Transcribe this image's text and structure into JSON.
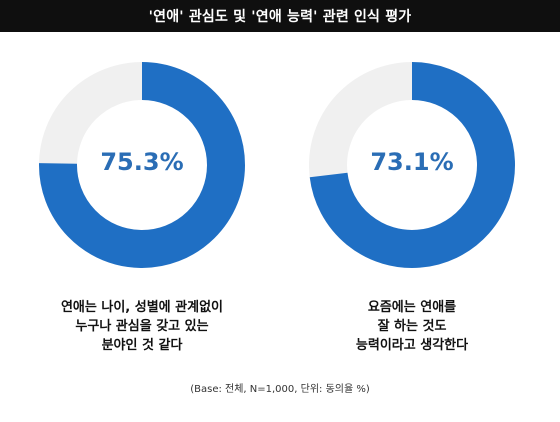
{
  "title": "'연애' 관심도 및 '연애 능력' 관련 인식 평가",
  "footnote": "(Base: 전체, N=1,000, 단위: 동의율 %)",
  "colors": {
    "accent": "#1f6fc4",
    "track": "#f0f0f0",
    "title_bg": "#0f0f0f",
    "value_text": "#2a6db5"
  },
  "chart_data": [
    {
      "type": "pie",
      "value": 75.3,
      "value_label": "75.3%",
      "caption_lines": [
        "연애는 나이, 성별에 관계없이",
        "누구나 관심을 갖고 있는",
        "분야인 것 같다"
      ]
    },
    {
      "type": "pie",
      "value": 73.1,
      "value_label": "73.1%",
      "caption_lines": [
        "요즘에는 연애를",
        "잘 하는 것도",
        "능력이라고 생각한다"
      ]
    }
  ]
}
